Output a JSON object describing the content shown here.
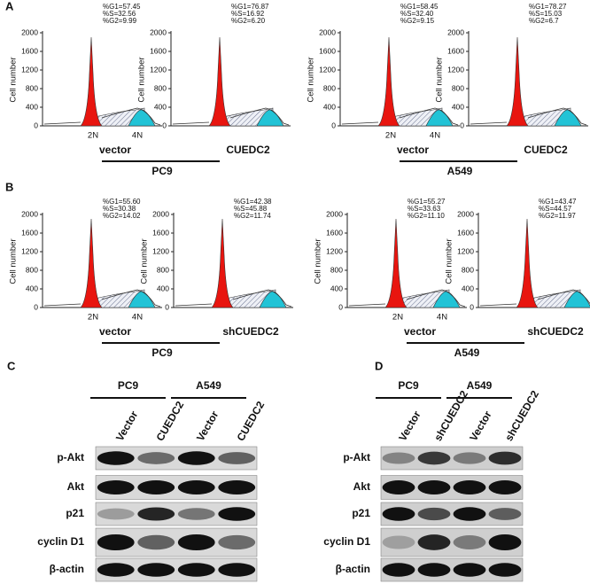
{
  "flow": {
    "y_axis_label": "Cell number",
    "yticks": [
      0,
      400,
      800,
      1200,
      1600,
      2000
    ],
    "peaks": [
      "2N",
      "4N"
    ],
    "panels": [
      {
        "label": "A",
        "groups": [
          {
            "cell_line": "PC9",
            "plots": [
              {
                "condition": "vector",
                "stats": [
                  "%G1=57.45",
                  "%S=32.56",
                  "%G2=9.99"
                ]
              },
              {
                "condition": "CUEDC2",
                "stats": [
                  "%G1=76.87",
                  "%S=16.92",
                  "%G2=6.20"
                ]
              }
            ]
          },
          {
            "cell_line": "A549",
            "plots": [
              {
                "condition": "vector",
                "stats": [
                  "%G1=58.45",
                  "%S=32.40",
                  "%G2=9.15"
                ]
              },
              {
                "condition": "CUEDC2",
                "stats": [
                  "%G1=78.27",
                  "%S=15.03",
                  "%G2=6.7"
                ]
              }
            ]
          }
        ]
      },
      {
        "label": "B",
        "groups": [
          {
            "cell_line": "PC9",
            "plots": [
              {
                "condition": "vector",
                "stats": [
                  "%G1=55.60",
                  "%S=30.38",
                  "%G2=14.02"
                ]
              },
              {
                "condition": "shCUEDC2",
                "stats": [
                  "%G1=42.38",
                  "%S=45.88",
                  "%G2=11.74"
                ]
              }
            ]
          },
          {
            "cell_line": "A549",
            "plots": [
              {
                "condition": "vector",
                "stats": [
                  "%G1=55.27",
                  "%S=33.63",
                  "%G2=11.10"
                ]
              },
              {
                "condition": "shCUEDC2",
                "stats": [
                  "%G1=43.47",
                  "%S=44.57",
                  "%G2=11.97"
                ]
              }
            ]
          }
        ]
      }
    ]
  },
  "blots": [
    {
      "label": "C",
      "groups": [
        "PC9",
        "A549"
      ],
      "lanes": [
        "Vector",
        "CUEDC2",
        "Vector",
        "CUEDC2"
      ],
      "proteins": [
        "p-Akt",
        "Akt",
        "p21",
        "cyclin D1",
        "β-actin"
      ]
    },
    {
      "label": "D",
      "groups": [
        "PC9",
        "A549"
      ],
      "lanes": [
        "Vector",
        "shCUEDC2",
        "Vector",
        "shCUEDC2"
      ],
      "proteins": [
        "p-Akt",
        "Akt",
        "p21",
        "cyclin D1",
        "β-actin"
      ]
    }
  ]
}
